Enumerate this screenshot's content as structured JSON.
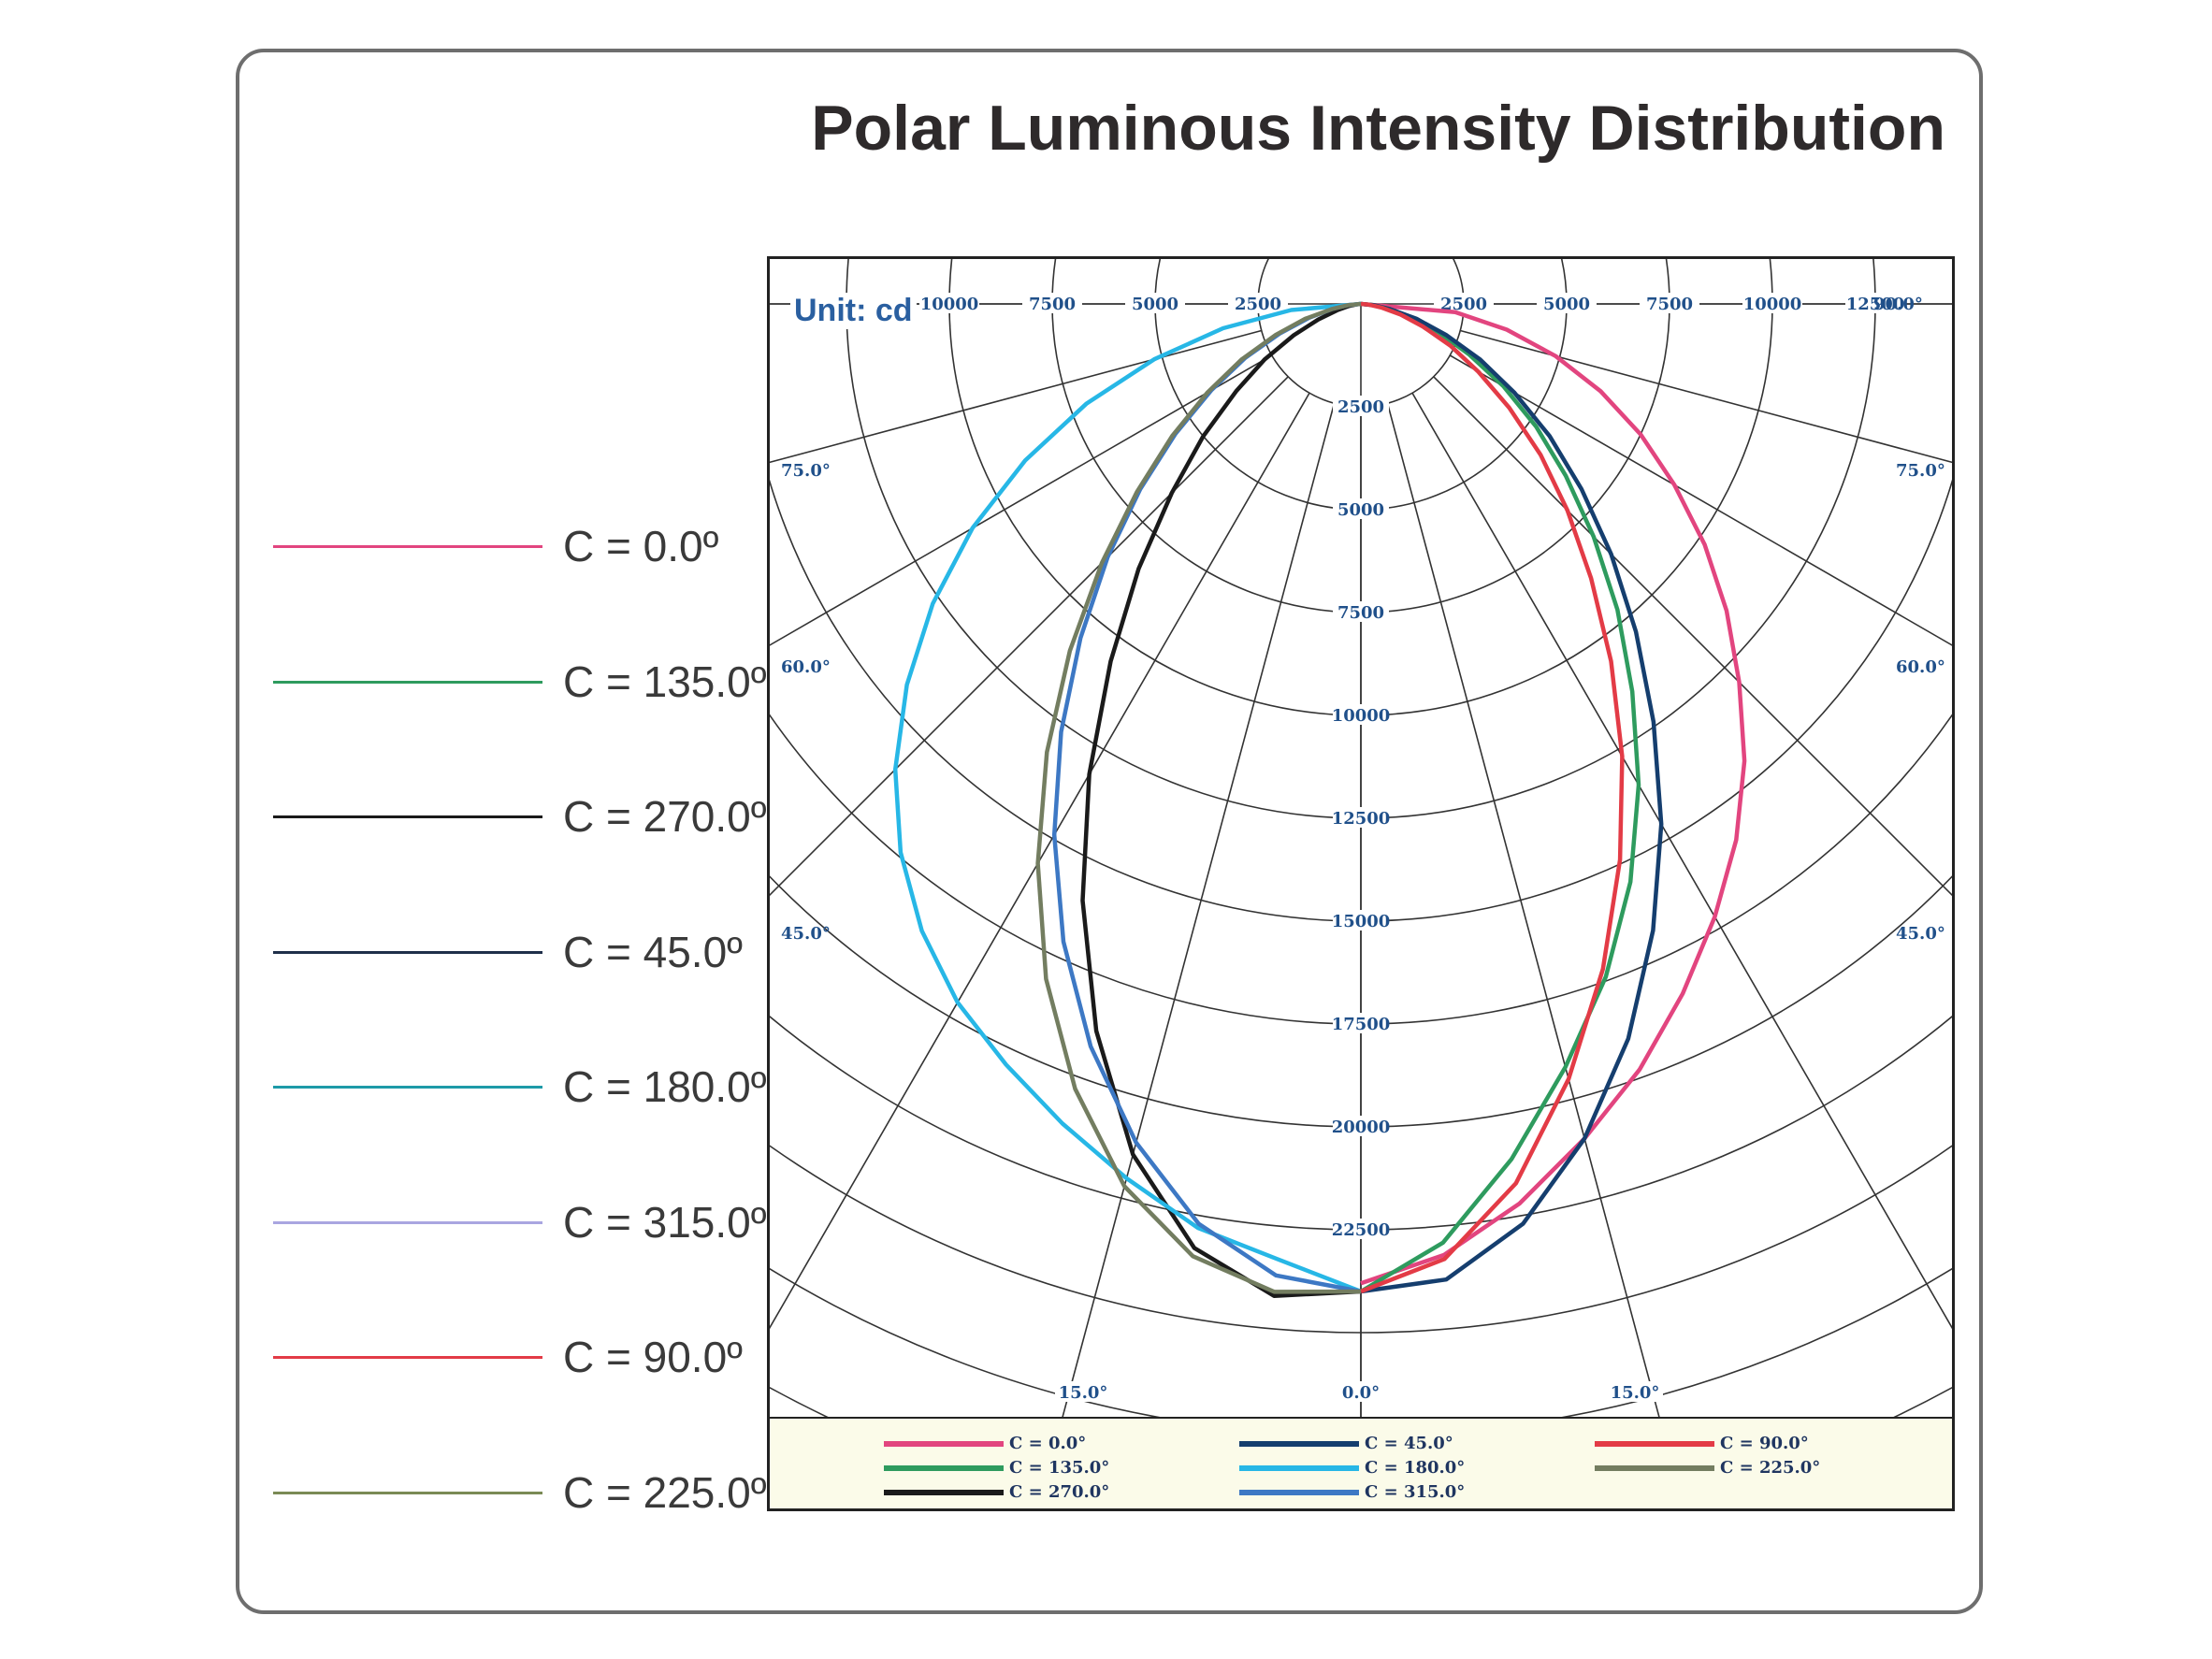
{
  "chart_data": {
    "type": "polar",
    "title": "Polar Luminous Intensity Distribution",
    "unit_label": "Unit: cd",
    "radial_ticks": [
      2500,
      5000,
      7500,
      10000,
      12500,
      15000,
      17500,
      20000,
      22500,
      25000
    ],
    "radial_tick_labels": [
      "2500",
      "5000",
      "7500",
      "10000",
      "12500",
      "15000",
      "17500",
      "20000",
      "22500"
    ],
    "top_tick_labels": [
      "12500",
      "10000",
      "7500",
      "5000",
      "2500",
      "2500",
      "5000",
      "7500",
      "10000",
      "12500"
    ],
    "angle_labels_left": [
      "75.0°",
      "60.0°",
      "45.0°"
    ],
    "angle_labels_right": [
      "90.0°",
      "75.0°",
      "60.0°",
      "45.0°"
    ],
    "bottom_angle_labels": [
      "15.0°",
      "0.0°",
      "15.0°"
    ],
    "rlim": [
      0,
      25000
    ],
    "gamma_deg": [
      0,
      5,
      10,
      15,
      20,
      25,
      30,
      35,
      40,
      45,
      50,
      55,
      60,
      65,
      70,
      75,
      80,
      85,
      90
    ],
    "series": [
      {
        "name": "C = 0.0º",
        "color": "#e2457f",
        "side": "right",
        "values": [
          23800,
          23200,
          22200,
          21000,
          19800,
          18500,
          17200,
          15900,
          14500,
          13000,
          11600,
          10200,
          8800,
          7500,
          6200,
          4900,
          3600,
          2300,
          0
        ]
      },
      {
        "name": "C = 135.0º",
        "color": "#2e9b5e",
        "side": "right",
        "values": [
          24000,
          22900,
          21100,
          19200,
          17400,
          15500,
          13500,
          11500,
          9700,
          8000,
          6500,
          5200,
          4000,
          2900,
          2000,
          1300,
          700,
          300,
          0
        ]
      },
      {
        "name": "C = 270.0º",
        "color": "#1a1a1a",
        "side": "left",
        "values": [
          24000,
          24200,
          23300,
          21400,
          18800,
          16000,
          13200,
          10600,
          8400,
          6500,
          5000,
          3700,
          2700,
          1800,
          1100,
          600,
          300,
          100,
          0
        ]
      },
      {
        "name": "C = 45.0º",
        "color": "#153e6e",
        "side": "right",
        "values": [
          24000,
          23800,
          22700,
          21000,
          19000,
          16800,
          14600,
          12400,
          10400,
          8600,
          7000,
          5600,
          4300,
          3200,
          2200,
          1400,
          700,
          300,
          0
        ]
      },
      {
        "name": "C = 180.0º",
        "color": "#27b7e6",
        "side": "left",
        "values": [
          24000,
          23300,
          22800,
          22000,
          21200,
          20400,
          19600,
          18600,
          17400,
          16000,
          14400,
          12700,
          10900,
          9000,
          7100,
          5200,
          3400,
          1700,
          0
        ]
      },
      {
        "name": "C = 315.0º",
        "color": "#3d78c4",
        "side": "left",
        "values": [
          24000,
          23700,
          22700,
          21100,
          19200,
          17100,
          14900,
          12700,
          10600,
          8700,
          7000,
          5500,
          4200,
          3100,
          2100,
          1300,
          700,
          300,
          0
        ]
      },
      {
        "name": "C = 90.0º",
        "color": "#e33b46",
        "side": "right",
        "values": [
          24000,
          23300,
          21700,
          19500,
          17200,
          14900,
          12700,
          10600,
          8700,
          7100,
          5700,
          4400,
          3300,
          2400,
          1600,
          1000,
          500,
          200,
          0
        ]
      },
      {
        "name": "C = 225.0º",
        "color": "#737d60",
        "side": "left",
        "values": [
          24000,
          24100,
          23500,
          22200,
          20300,
          18100,
          15700,
          13300,
          11000,
          8900,
          7100,
          5600,
          4300,
          3200,
          2200,
          1400,
          700,
          300,
          0
        ]
      }
    ],
    "legend_inline": [
      {
        "label": "C = 0.0°",
        "color": "#e2457f"
      },
      {
        "label": "C = 45.0°",
        "color": "#153e6e"
      },
      {
        "label": "C = 90.0°",
        "color": "#e33b46"
      },
      {
        "label": "C = 135.0°",
        "color": "#2e9b5e"
      },
      {
        "label": "C = 180.0°",
        "color": "#27b7e6"
      },
      {
        "label": "C = 225.0°",
        "color": "#737d60"
      },
      {
        "label": "C = 270.0°",
        "color": "#1a1a1a"
      },
      {
        "label": "C = 315.0°",
        "color": "#3d78c4"
      }
    ],
    "side_legend": [
      {
        "label": "C  =  0.0º",
        "color": "#e2457f"
      },
      {
        "label": "C = 135.0º",
        "color": "#2e9b5e"
      },
      {
        "label": "C = 270.0º",
        "color": "#1a1a1a"
      },
      {
        "label": "C = 45.0º",
        "color": "#1f2f4a"
      },
      {
        "label": "C = 180.0º",
        "color": "#1d9aa8"
      },
      {
        "label": "C = 315.0º",
        "color": "#a9a6e0"
      },
      {
        "label": "C = 90.0º",
        "color": "#e33b46"
      },
      {
        "label": "C = 225.0º",
        "color": "#7a8a55"
      }
    ],
    "grid": true,
    "legend_placement": "left and bottom"
  }
}
